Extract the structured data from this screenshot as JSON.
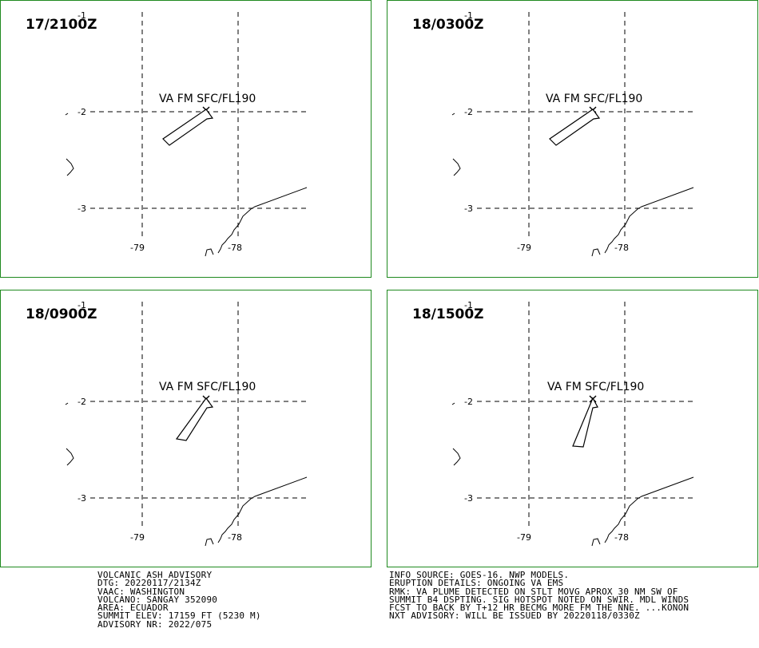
{
  "panels": [
    {
      "time": "17/2100Z",
      "va_label": "VA FM SFC/FL190",
      "plume": "a"
    },
    {
      "time": "18/0300Z",
      "va_label": "VA FM SFC/FL190",
      "plume": "a"
    },
    {
      "time": "18/0900Z",
      "va_label": "VA FM SFC/FL190",
      "plume": "b"
    },
    {
      "time": "18/1500Z",
      "va_label": "VA FM SFC/FL190",
      "plume": "c"
    }
  ],
  "map": {
    "lat_labels": [
      "-1",
      "-2",
      "-3"
    ],
    "lon_labels": [
      "-79",
      "-78"
    ]
  },
  "advisory_left": [
    "VOLCANIC ASH ADVISORY",
    "DTG: 20220117/2134Z",
    "VAAC: WASHINGTON",
    "VOLCANO: SANGAY 352090",
    "AREA: ECUADOR",
    "SUMMIT ELEV: 17159 FT (5230 M)",
    "ADVISORY NR: 2022/075"
  ],
  "advisory_right": [
    "INFO SOURCE: GOES-16. NWP MODELS.",
    "ERUPTION DETAILS: ONGOING VA EMS",
    "RMK: VA PLUME DETECTED ON STLT MOVG APROX 30 NM SW OF",
    "SUMMIT B4 DSPTING. SIG HOTSPOT NOTED ON SWIR. MDL WINDS",
    "FCST TO BACK BY T+12 HR BECMG MORE FM THE NNE. ...KONON",
    "NXT ADVISORY: WILL BE ISSUED BY 20220118/0330Z"
  ]
}
